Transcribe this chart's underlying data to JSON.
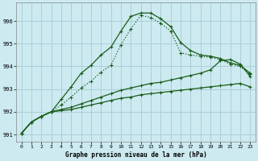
{
  "title": "Graphe pression niveau de la mer (hPa)",
  "bg_color": "#cceaf0",
  "grid_color": "#aad0d8",
  "line_color": "#1a5c1a",
  "xlim": [
    -0.5,
    23.5
  ],
  "ylim": [
    990.7,
    996.8
  ],
  "yticks": [
    991,
    992,
    993,
    994,
    995,
    996
  ],
  "xticks": [
    0,
    1,
    2,
    3,
    4,
    5,
    6,
    7,
    8,
    9,
    10,
    11,
    12,
    13,
    14,
    15,
    16,
    17,
    18,
    19,
    20,
    21,
    22,
    23
  ],
  "series1": {
    "x": [
      0,
      1,
      2,
      3,
      4,
      5,
      6,
      7,
      8,
      9,
      10,
      11,
      12,
      13,
      14,
      15,
      16,
      17,
      18,
      19,
      20,
      21,
      22,
      23
    ],
    "y": [
      991.05,
      991.55,
      991.8,
      992.0,
      992.55,
      993.1,
      993.7,
      994.05,
      994.5,
      994.85,
      995.55,
      996.2,
      996.35,
      996.35,
      996.1,
      995.75,
      995.05,
      994.7,
      994.5,
      994.45,
      994.35,
      994.15,
      994.05,
      993.7
    ]
  },
  "series2": {
    "x": [
      0,
      1,
      2,
      3,
      4,
      5,
      6,
      7,
      8,
      9,
      10,
      11,
      12,
      13,
      14,
      15,
      16,
      17,
      18,
      19,
      20,
      21,
      22,
      23
    ],
    "y": [
      991.05,
      991.55,
      991.8,
      992.0,
      992.3,
      992.65,
      993.05,
      993.35,
      993.75,
      994.05,
      994.95,
      995.65,
      996.25,
      996.15,
      995.9,
      995.55,
      994.6,
      994.5,
      994.45,
      994.4,
      994.3,
      994.1,
      994.0,
      993.65
    ]
  },
  "series3": {
    "x": [
      0,
      1,
      2,
      3,
      4,
      5,
      6,
      7,
      8,
      9,
      10,
      11,
      12,
      13,
      14,
      15,
      16,
      17,
      18,
      19,
      20,
      21,
      22,
      23
    ],
    "y": [
      991.05,
      991.55,
      991.8,
      992.0,
      992.1,
      992.2,
      992.35,
      992.5,
      992.65,
      992.8,
      992.95,
      993.05,
      993.15,
      993.25,
      993.3,
      993.4,
      993.5,
      993.6,
      993.7,
      993.85,
      994.25,
      994.3,
      994.1,
      993.55
    ]
  },
  "series4": {
    "x": [
      0,
      1,
      2,
      3,
      4,
      5,
      6,
      7,
      8,
      9,
      10,
      11,
      12,
      13,
      14,
      15,
      16,
      17,
      18,
      19,
      20,
      21,
      22,
      23
    ],
    "y": [
      991.05,
      991.55,
      991.8,
      992.0,
      992.05,
      992.1,
      992.2,
      992.3,
      992.4,
      992.5,
      992.6,
      992.65,
      992.75,
      992.8,
      992.85,
      992.9,
      992.95,
      993.0,
      993.05,
      993.1,
      993.15,
      993.2,
      993.25,
      993.1
    ]
  }
}
